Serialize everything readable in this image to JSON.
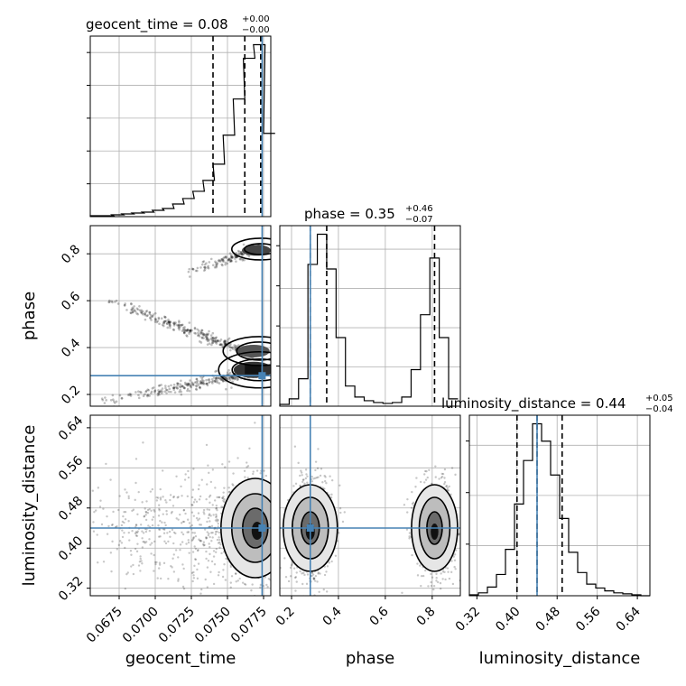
{
  "colors": {
    "truth": "#4682b4",
    "hist": "#000000",
    "density": "#000000",
    "grid": "#b0b0b0"
  },
  "chart_data": [
    {
      "type": "histogram",
      "panel": "geocent_time",
      "title": "geocent_time = 0.08",
      "title_plus": "+0.00",
      "title_minus": "−0.00",
      "x_range": [
        0.0655,
        0.078
      ],
      "x_ticks": [
        0.0675,
        0.07,
        0.0725,
        0.075,
        0.0775
      ],
      "x_tick_labels": [
        "0.0675",
        "0.0700",
        "0.0725",
        "0.0750",
        "0.0775"
      ],
      "xlabel": "geocent_time",
      "bins_left": [
        0.0655,
        0.0663,
        0.067,
        0.0677,
        0.0684,
        0.0691,
        0.0698,
        0.0705,
        0.0712,
        0.0719,
        0.0726,
        0.0733,
        0.074,
        0.0747,
        0.0754,
        0.0761,
        0.0768,
        0.0775
      ],
      "counts": [
        1,
        1,
        2,
        3,
        4,
        5,
        7,
        9,
        14,
        20,
        28,
        40,
        58,
        90,
        130,
        175,
        190,
        92
      ],
      "quantiles": [
        0.074,
        0.0762,
        0.0773
      ],
      "truth": 0.0774
    },
    {
      "type": "histogram",
      "panel": "phase",
      "title": "phase = 0.35",
      "title_plus": "+0.46",
      "title_minus": "−0.07",
      "x_range": [
        0.15,
        0.92
      ],
      "x_ticks": [
        0.2,
        0.4,
        0.6,
        0.8
      ],
      "x_tick_labels": [
        "0.2",
        "0.4",
        "0.6",
        "0.8"
      ],
      "xlabel": "phase",
      "bins_left": [
        0.15,
        0.19,
        0.23,
        0.27,
        0.31,
        0.35,
        0.39,
        0.43,
        0.47,
        0.51,
        0.55,
        0.59,
        0.63,
        0.67,
        0.71,
        0.75,
        0.79,
        0.83,
        0.87
      ],
      "counts": [
        2,
        8,
        30,
        155,
        188,
        150,
        75,
        22,
        10,
        6,
        4,
        3,
        4,
        10,
        40,
        100,
        162,
        75,
        8
      ],
      "quantiles": [
        0.28,
        0.35,
        0.81
      ],
      "truth": 0.28
    },
    {
      "type": "histogram",
      "panel": "luminosity_distance",
      "title": "luminosity_distance = 0.44",
      "title_plus": "+0.05",
      "title_minus": "−0.04",
      "x_range": [
        0.305,
        0.665
      ],
      "x_ticks": [
        0.32,
        0.4,
        0.48,
        0.56,
        0.64
      ],
      "x_tick_labels": [
        "0.32",
        "0.40",
        "0.48",
        "0.56",
        "0.64"
      ],
      "xlabel": "luminosity_distance",
      "bins_left": [
        0.305,
        0.323,
        0.341,
        0.359,
        0.377,
        0.395,
        0.413,
        0.431,
        0.449,
        0.467,
        0.485,
        0.503,
        0.521,
        0.539,
        0.557,
        0.575,
        0.593,
        0.611,
        0.629,
        0.647
      ],
      "counts": [
        1,
        3,
        9,
        22,
        48,
        95,
        140,
        178,
        160,
        125,
        80,
        45,
        24,
        12,
        8,
        5,
        3,
        2,
        1,
        0
      ],
      "quantiles": [
        0.4,
        0.44,
        0.49
      ],
      "truth": 0.44
    },
    {
      "type": "scatter",
      "panel": "phase vs geocent_time",
      "ylabel": "phase",
      "y_range": [
        0.15,
        0.92
      ],
      "y_ticks": [
        0.2,
        0.4,
        0.6,
        0.8
      ],
      "y_tick_labels": [
        "0.2",
        "0.4",
        "0.6",
        "0.8"
      ],
      "arms": [
        {
          "from": [
            0.0658,
            0.165
          ],
          "to": [
            0.0772,
            0.3
          ]
        },
        {
          "from": [
            0.066,
            0.62
          ],
          "to": [
            0.0768,
            0.37
          ]
        },
        {
          "from": [
            0.072,
            0.715
          ],
          "to": [
            0.0775,
            0.83
          ]
        }
      ],
      "truth": [
        0.0774,
        0.28
      ]
    },
    {
      "type": "scatter",
      "panel": "luminosity_distance vs geocent_time",
      "ylabel": "luminosity_distance",
      "y_range": [
        0.305,
        0.665
      ],
      "y_ticks": [
        0.32,
        0.4,
        0.48,
        0.56,
        0.64
      ],
      "y_tick_labels": [
        "0.32",
        "0.40",
        "0.48",
        "0.56",
        "0.64"
      ],
      "center": [
        0.0768,
        0.44
      ],
      "truth": [
        0.0774,
        0.44
      ]
    },
    {
      "type": "scatter",
      "panel": "luminosity_distance vs phase",
      "centers": [
        [
          0.28,
          0.44
        ],
        [
          0.81,
          0.44
        ]
      ],
      "truth": [
        0.28,
        0.44
      ]
    }
  ]
}
